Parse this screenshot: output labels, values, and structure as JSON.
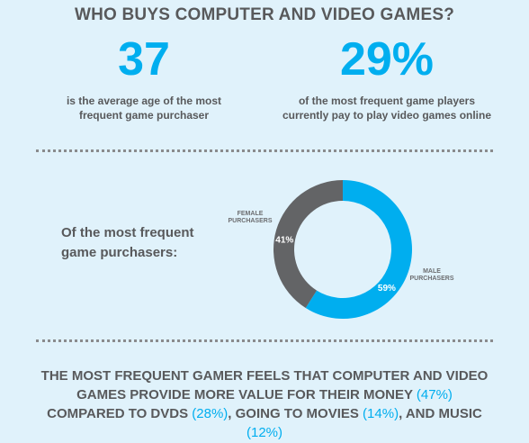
{
  "header": {
    "title": "WHO BUYS COMPUTER AND VIDEO GAMES?"
  },
  "stats": [
    {
      "value": "37",
      "lines": [
        "is the average age of the most",
        "frequent game purchaser"
      ]
    },
    {
      "value": "29%",
      "lines": [
        "of the most frequent game players",
        "currently pay to play video games online"
      ]
    }
  ],
  "chart_data": {
    "type": "pie",
    "title": "Of the most frequent game purchasers:",
    "categories": [
      "FEMALE PURCHASERS",
      "MALE PURCHASERS"
    ],
    "values": [
      41,
      59
    ],
    "value_labels": [
      "41%",
      "59%"
    ],
    "colors": [
      "#636466",
      "#00aeef"
    ],
    "donut": true
  },
  "footer": {
    "segments": [
      {
        "text": "THE MOST FREQUENT GAMER FEELS THAT COMPUTER AND VIDEO GAMES PROVIDE MORE VALUE FOR THEIR MONEY ",
        "highlight": false
      },
      {
        "text": "(47%)",
        "highlight": true
      },
      {
        "text": " COMPARED TO DVDS ",
        "highlight": false
      },
      {
        "text": "(28%)",
        "highlight": true
      },
      {
        "text": ", GOING TO MOVIES ",
        "highlight": false
      },
      {
        "text": "(14%)",
        "highlight": true
      },
      {
        "text": ", AND MUSIC ",
        "highlight": false
      },
      {
        "text": "(12%)",
        "highlight": true
      }
    ]
  }
}
